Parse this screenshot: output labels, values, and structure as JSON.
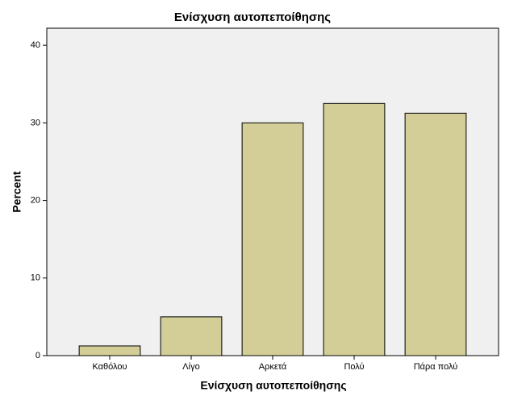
{
  "chart_data": {
    "type": "bar",
    "title": "Ενίσχυση αυτοπεποίθησης",
    "x_label": "Ενίσχυση αυτοπεποίθησης",
    "y_label": "Percent",
    "categories": [
      "Καθόλου",
      "Λίγο",
      "Αρκετά",
      "Πολύ",
      "Πάρα πολύ"
    ],
    "values": [
      1.25,
      5,
      30,
      32.5,
      31.25
    ],
    "color": "#d3ce97",
    "ylim": [
      0,
      42.2
    ],
    "yticks": [
      0,
      10,
      20,
      30,
      40
    ],
    "grid": false
  }
}
